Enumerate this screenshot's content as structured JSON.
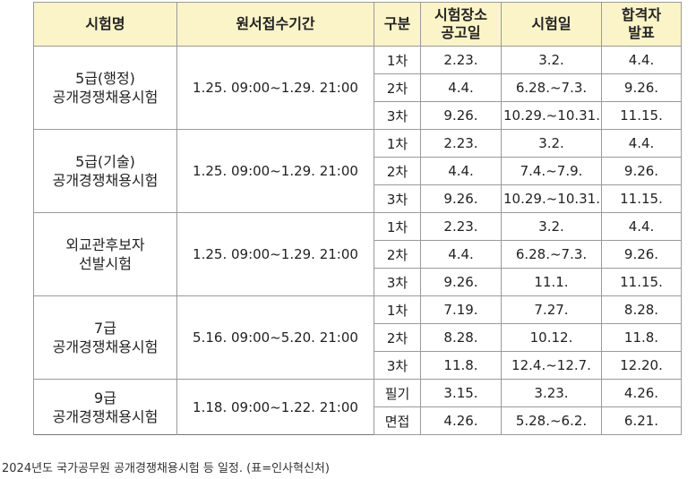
{
  "headers": {
    "exam": "시험명",
    "period": "원서접수기간",
    "stage": "구분",
    "venue": [
      "시험장소",
      "공고일"
    ],
    "date": "시험일",
    "result": [
      "합격자",
      "발표"
    ]
  },
  "exams": [
    {
      "name": [
        "5급(행정)",
        "공개경쟁채용시험"
      ],
      "period": "1.25.  09:00~1.29.  21:00",
      "stages": [
        {
          "stage": "1차",
          "venue": "2.23.",
          "date": "3.2.",
          "result": "4.4."
        },
        {
          "stage": "2차",
          "venue": "4.4.",
          "date": "6.28.~7.3.",
          "result": "9.26."
        },
        {
          "stage": "3차",
          "venue": "9.26.",
          "date": "10.29.~10.31.",
          "result": "11.15."
        }
      ]
    },
    {
      "name": [
        "5급(기술)",
        "공개경쟁채용시험"
      ],
      "period": "1.25.  09:00~1.29.  21:00",
      "stages": [
        {
          "stage": "1차",
          "venue": "2.23.",
          "date": "3.2.",
          "result": "4.4."
        },
        {
          "stage": "2차",
          "venue": "4.4.",
          "date": "7.4.~7.9.",
          "result": "9.26."
        },
        {
          "stage": "3차",
          "venue": "9.26.",
          "date": "10.29.~10.31.",
          "result": "11.15."
        }
      ]
    },
    {
      "name": [
        "외교관후보자",
        "선발시험"
      ],
      "period": "1.25.  09:00~1.29.  21:00",
      "stages": [
        {
          "stage": "1차",
          "venue": "2.23.",
          "date": "3.2.",
          "result": "4.4."
        },
        {
          "stage": "2차",
          "venue": "4.4.",
          "date": "6.28.~7.3.",
          "result": "9.26."
        },
        {
          "stage": "3차",
          "venue": "9.26.",
          "date": "11.1.",
          "result": "11.15."
        }
      ]
    },
    {
      "name": [
        "7급",
        "공개경쟁채용시험"
      ],
      "period": "5.16.  09:00~5.20.  21:00",
      "stages": [
        {
          "stage": "1차",
          "venue": "7.19.",
          "date": "7.27.",
          "result": "8.28."
        },
        {
          "stage": "2차",
          "venue": "8.28.",
          "date": "10.12.",
          "result": "11.8."
        },
        {
          "stage": "3차",
          "venue": "11.8.",
          "date": "12.4.~12.7.",
          "result": "12.20."
        }
      ]
    },
    {
      "name": [
        "9급",
        "공개경쟁채용시험"
      ],
      "period": "1.18.  09:00~1.22.  21:00",
      "stages": [
        {
          "stage": "필기",
          "venue": "3.15.",
          "date": "3.23.",
          "result": "4.26."
        },
        {
          "stage": "면접",
          "venue": "4.26.",
          "date": "5.28.~6.2.",
          "result": "6.21."
        }
      ]
    }
  ],
  "caption": "2024년도 국가공무원 공개경쟁채용시험 등 일정. (표=인사혁신처)"
}
